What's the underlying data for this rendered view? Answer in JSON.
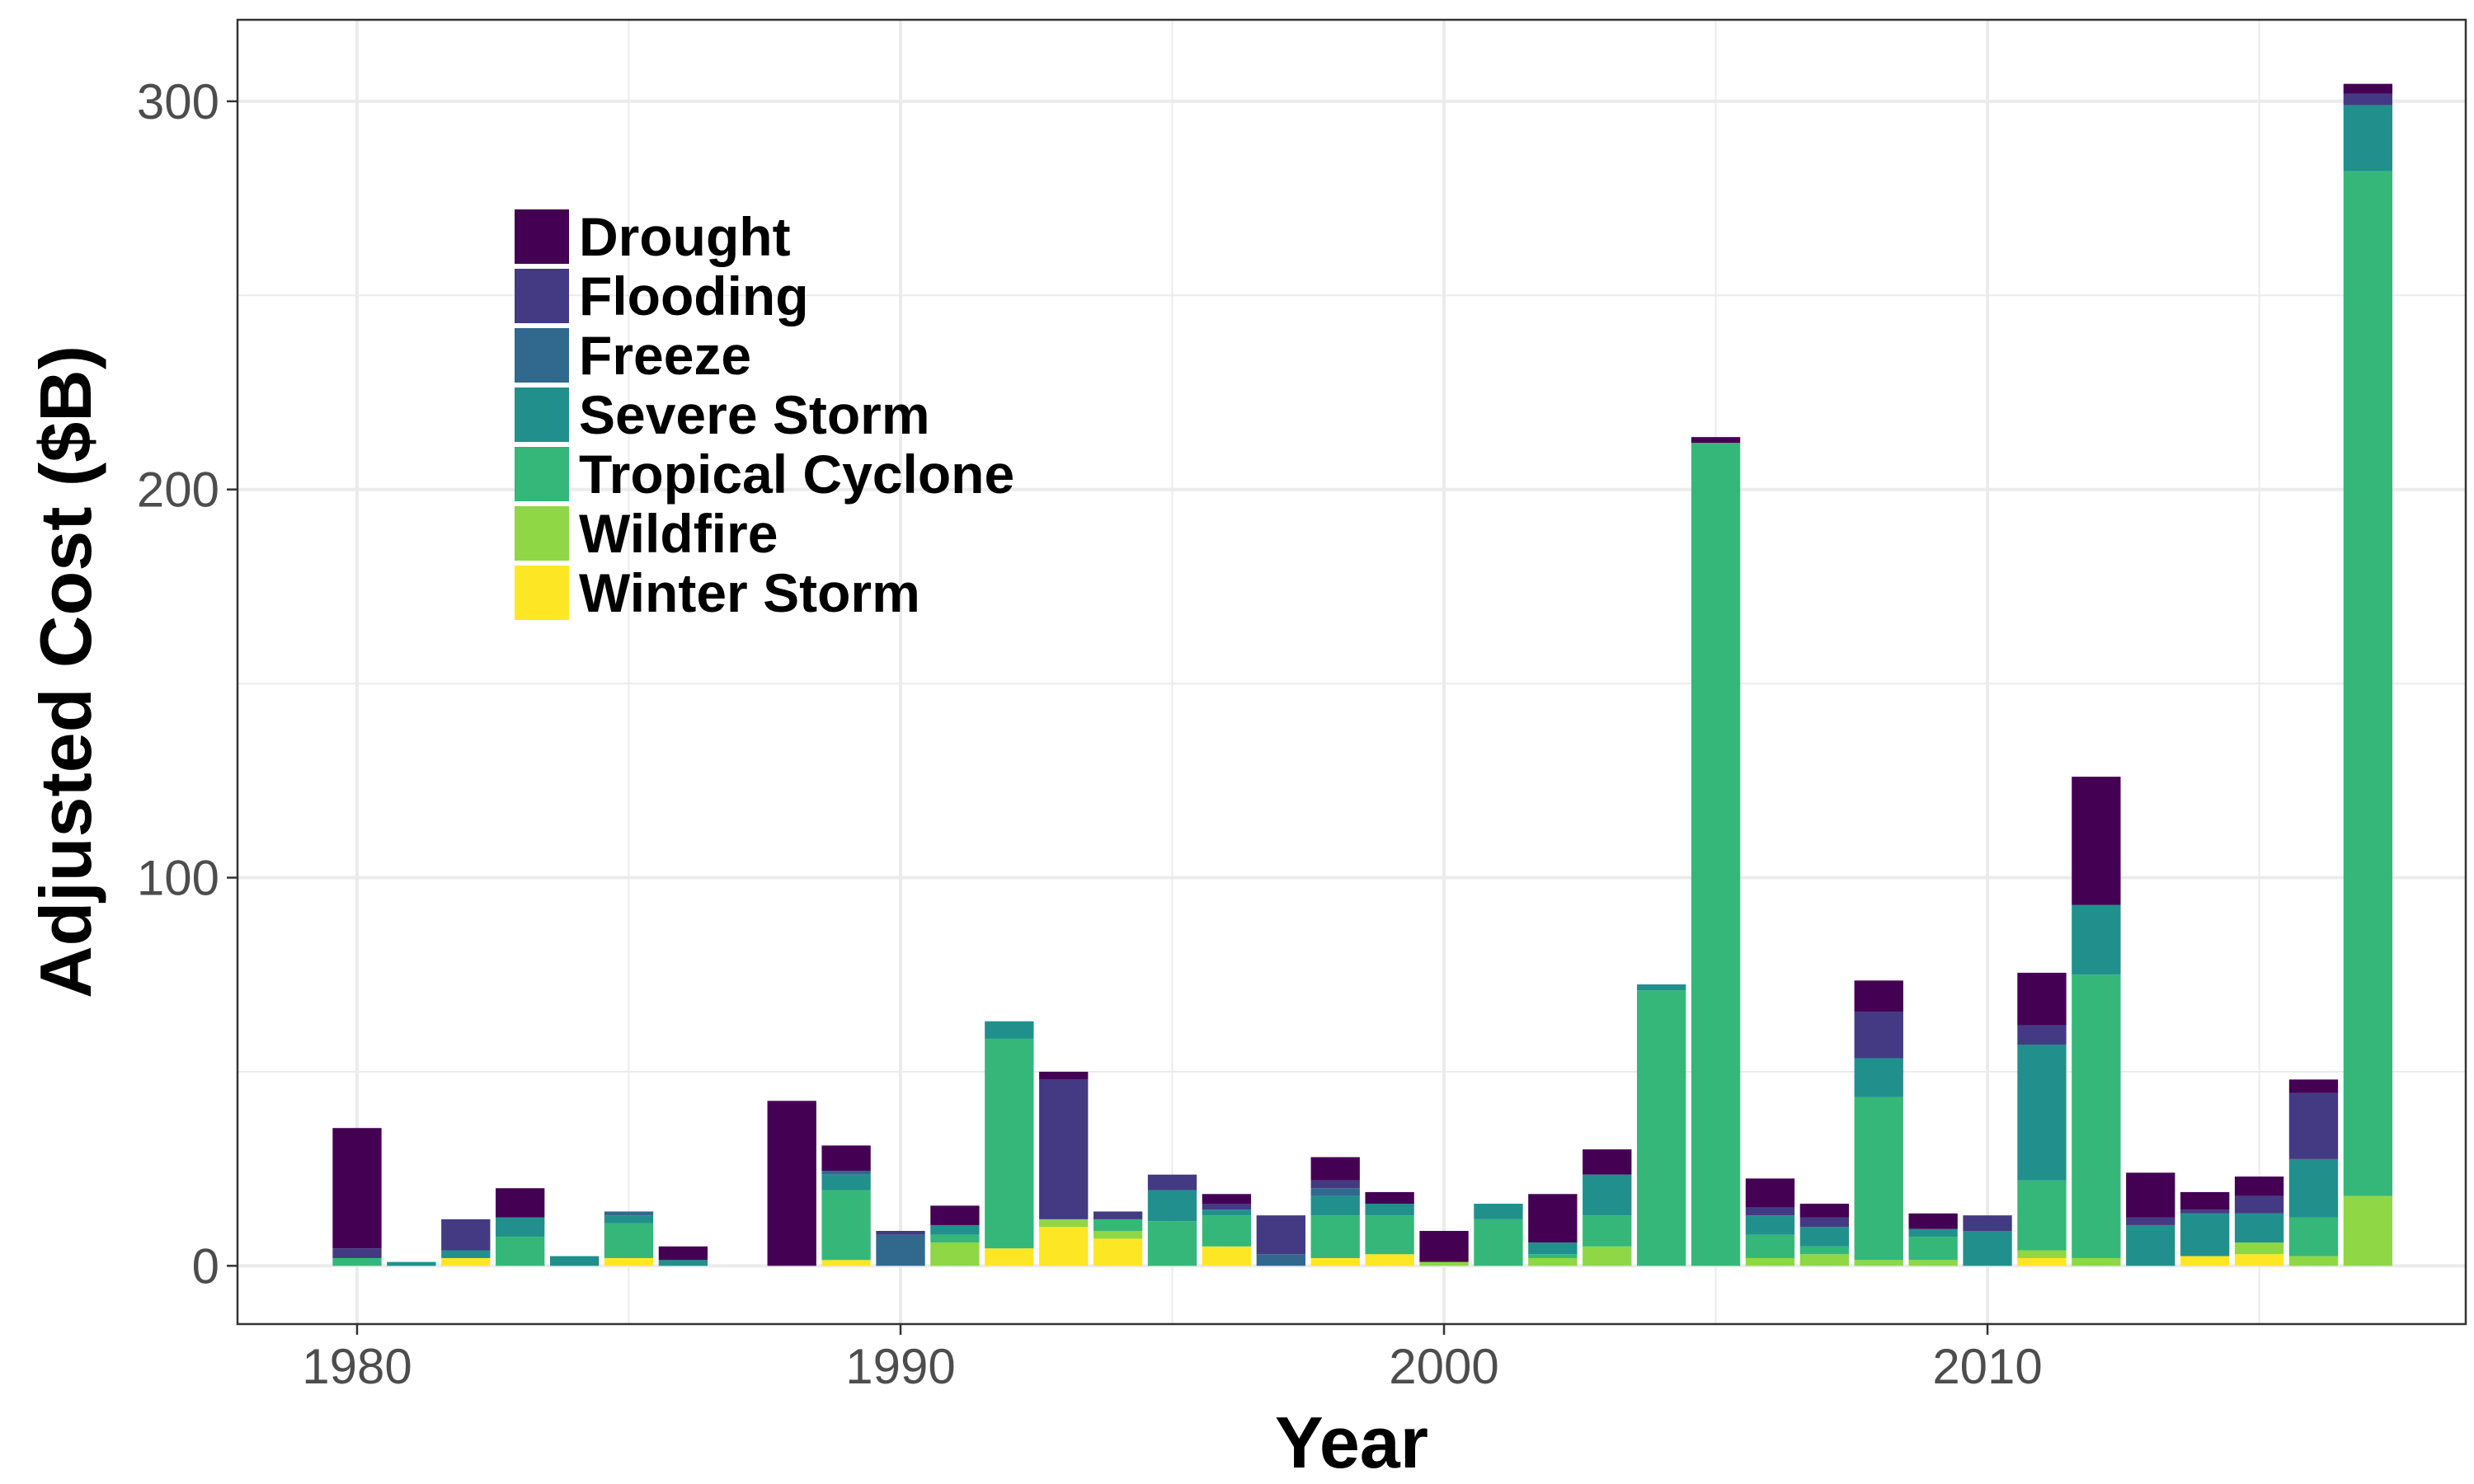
{
  "chart_data": {
    "type": "bar",
    "stacked": true,
    "title": "",
    "xlabel": "Year",
    "ylabel": "Adjusted Cost ($B)",
    "xlim": [
      1977.8,
      2018.8
    ],
    "ylim": [
      -15,
      321
    ],
    "x_ticks": [
      1980,
      1990,
      2000,
      2010
    ],
    "y_ticks": [
      0,
      100,
      200,
      300
    ],
    "grid": true,
    "legend_position": "top-left inside plot",
    "series_order": [
      "Drought",
      "Flooding",
      "Freeze",
      "Severe Storm",
      "Tropical Cyclone",
      "Wildfire",
      "Winter Storm"
    ],
    "stack_order_bottom_to_top": [
      "Winter Storm",
      "Wildfire",
      "Tropical Cyclone",
      "Severe Storm",
      "Freeze",
      "Flooding",
      "Drought"
    ],
    "colors": {
      "Drought": "#440154",
      "Flooding": "#443A83",
      "Freeze": "#31688E",
      "Severe Storm": "#21908C",
      "Tropical Cyclone": "#35B779",
      "Wildfire": "#8FD744",
      "Winter Storm": "#FDE725"
    },
    "x": [
      1980,
      1981,
      1982,
      1983,
      1984,
      1985,
      1986,
      1987,
      1988,
      1989,
      1990,
      1991,
      1992,
      1993,
      1994,
      1995,
      1996,
      1997,
      1998,
      1999,
      2000,
      2001,
      2002,
      2003,
      2004,
      2005,
      2006,
      2007,
      2008,
      2009,
      2010,
      2011,
      2012,
      2013,
      2014,
      2015,
      2016,
      2017
    ],
    "series": [
      {
        "name": "Winter Storm",
        "values": [
          0,
          0,
          2,
          0,
          0,
          2,
          0,
          0,
          0,
          1.5,
          0,
          0,
          4.5,
          10,
          7,
          0,
          5,
          0,
          2,
          3,
          0,
          0,
          0,
          0,
          0,
          0,
          0,
          0,
          0,
          0,
          0,
          2,
          0,
          0,
          2.5,
          3,
          0,
          0
        ]
      },
      {
        "name": "Wildfire",
        "values": [
          0,
          0,
          0,
          0,
          0,
          0,
          0,
          0,
          0,
          0,
          0,
          6,
          0,
          2,
          2,
          0,
          0,
          0,
          0,
          0,
          1,
          0,
          2,
          5,
          0,
          0,
          2,
          3,
          1.5,
          1.5,
          0,
          2,
          2,
          0,
          0,
          3,
          2.5,
          18
        ]
      },
      {
        "name": "Tropical Cyclone",
        "values": [
          2,
          0,
          0,
          7.5,
          0,
          9,
          0,
          0,
          0,
          18,
          0,
          2,
          54,
          0,
          3,
          11.5,
          8,
          0,
          11,
          10,
          0,
          12,
          1,
          8,
          71,
          212,
          6,
          2,
          42,
          6,
          0,
          18,
          73,
          0,
          0,
          0,
          10,
          264
        ]
      },
      {
        "name": "Severe Storm",
        "values": [
          0,
          1,
          2,
          5,
          2.5,
          2,
          1.5,
          0,
          0,
          4,
          0,
          2.5,
          4.5,
          0,
          0,
          8,
          1.5,
          0,
          5,
          3,
          0,
          4,
          3,
          10.5,
          1.5,
          0,
          5,
          5,
          10,
          2,
          9,
          35,
          18,
          10.5,
          11,
          7.5,
          15,
          17
        ]
      },
      {
        "name": "Freeze",
        "values": [
          0,
          0,
          0,
          0,
          0,
          1,
          0,
          0,
          0,
          1,
          8,
          0,
          0,
          0,
          0,
          0,
          0,
          3,
          2,
          0,
          0,
          0,
          0,
          0,
          0,
          0,
          0,
          0,
          0,
          0,
          0,
          0,
          0,
          0,
          0,
          0,
          0,
          0
        ]
      },
      {
        "name": "Flooding",
        "values": [
          2.5,
          0,
          8,
          0,
          0,
          0,
          0,
          0,
          0,
          0,
          1,
          0,
          0,
          36,
          2,
          4,
          1.5,
          10,
          2,
          0,
          0,
          0,
          0,
          0,
          0,
          0,
          2,
          2.5,
          12,
          0,
          4,
          5,
          0,
          2,
          1,
          4.5,
          17,
          3
        ]
      },
      {
        "name": "Drought",
        "values": [
          31,
          0,
          0,
          7.5,
          0,
          0,
          3.5,
          0,
          42.5,
          6.5,
          0,
          5,
          0,
          2,
          0,
          0,
          2.5,
          0,
          6,
          3,
          8,
          0,
          12.5,
          6.5,
          0,
          1.5,
          7.5,
          3.5,
          8,
          4,
          0,
          13.5,
          33,
          11.5,
          4.5,
          5,
          3.5,
          2.5
        ]
      }
    ]
  }
}
